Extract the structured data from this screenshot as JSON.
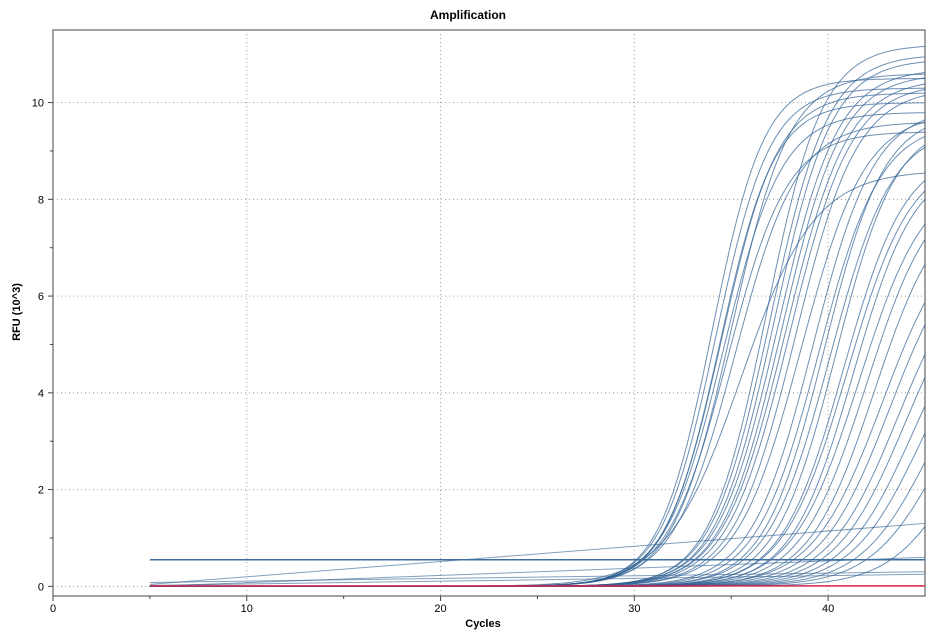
{
  "chart_data": {
    "type": "line",
    "title": "Amplification",
    "xlabel": "Cycles",
    "ylabel": "RFU (10^3)",
    "xlim": [
      0,
      45
    ],
    "ylim": [
      -0.2,
      11.5
    ],
    "x_ticks": [
      0,
      10,
      20,
      30,
      40
    ],
    "y_ticks": [
      0,
      2,
      4,
      6,
      8,
      10
    ],
    "grid": true,
    "legend": "none",
    "x_range": [
      5,
      45
    ],
    "threshold": 0.55,
    "curve_color": "#2d5f93",
    "baseline_color": "#d9234a",
    "threshold_color": "#3d6e9c",
    "curve_model": "sigmoid",
    "series": [
      {
        "ct": 34.0,
        "plateau": 10.5,
        "slope": 1.35
      },
      {
        "ct": 34.2,
        "plateau": 10.3,
        "slope": 1.4
      },
      {
        "ct": 34.4,
        "plateau": 10.0,
        "slope": 1.4
      },
      {
        "ct": 34.5,
        "plateau": 10.2,
        "slope": 1.45
      },
      {
        "ct": 34.6,
        "plateau": 9.8,
        "slope": 1.5
      },
      {
        "ct": 34.8,
        "plateau": 9.4,
        "slope": 1.55
      },
      {
        "ct": 35.0,
        "plateau": 10.6,
        "slope": 1.5
      },
      {
        "ct": 35.2,
        "plateau": 9.6,
        "slope": 1.6
      },
      {
        "ct": 35.5,
        "plateau": 8.6,
        "slope": 1.9
      },
      {
        "ct": 36.8,
        "plateau": 11.2,
        "slope": 1.45
      },
      {
        "ct": 37.0,
        "plateau": 11.0,
        "slope": 1.5
      },
      {
        "ct": 37.2,
        "plateau": 10.9,
        "slope": 1.5
      },
      {
        "ct": 37.4,
        "plateau": 10.7,
        "slope": 1.55
      },
      {
        "ct": 37.6,
        "plateau": 10.6,
        "slope": 1.55
      },
      {
        "ct": 37.8,
        "plateau": 10.5,
        "slope": 1.6
      },
      {
        "ct": 38.0,
        "plateau": 10.4,
        "slope": 1.6
      },
      {
        "ct": 38.3,
        "plateau": 10.3,
        "slope": 1.6
      },
      {
        "ct": 38.6,
        "plateau": 9.8,
        "slope": 1.65
      },
      {
        "ct": 39.2,
        "plateau": 9.9,
        "slope": 1.6
      },
      {
        "ct": 39.5,
        "plateau": 9.6,
        "slope": 1.6
      },
      {
        "ct": 39.8,
        "plateau": 9.8,
        "slope": 1.55
      },
      {
        "ct": 40.1,
        "plateau": 9.5,
        "slope": 1.6
      },
      {
        "ct": 40.4,
        "plateau": 9.6,
        "slope": 1.55
      },
      {
        "ct": 40.8,
        "plateau": 9.0,
        "slope": 1.6
      },
      {
        "ct": 41.0,
        "plateau": 8.9,
        "slope": 1.65
      },
      {
        "ct": 41.3,
        "plateau": 8.8,
        "slope": 1.6
      },
      {
        "ct": 41.6,
        "plateau": 8.5,
        "slope": 1.7
      },
      {
        "ct": 42.0,
        "plateau": 8.4,
        "slope": 1.7
      },
      {
        "ct": 42.4,
        "plateau": 8.1,
        "slope": 1.7
      },
      {
        "ct": 42.8,
        "plateau": 7.6,
        "slope": 1.8
      },
      {
        "ct": 43.2,
        "plateau": 7.4,
        "slope": 1.8
      },
      {
        "ct": 43.6,
        "plateau": 7.0,
        "slope": 1.8
      },
      {
        "ct": 44.0,
        "plateau": 6.8,
        "slope": 1.8
      },
      {
        "ct": 44.4,
        "plateau": 6.4,
        "slope": 1.8
      },
      {
        "ct": 44.8,
        "plateau": 6.0,
        "slope": 1.8
      },
      {
        "ct": 45.3,
        "plateau": 5.6,
        "slope": 1.8
      },
      {
        "ct": 45.8,
        "plateau": 5.2,
        "slope": 1.8
      },
      {
        "ct": 47.0,
        "plateau": 5.0,
        "slope": 1.8
      }
    ],
    "baseline_series": [
      {
        "x": [
          5,
          45
        ],
        "y": [
          0.08,
          0.3
        ]
      },
      {
        "x": [
          5,
          45
        ],
        "y": [
          0.04,
          1.3
        ]
      },
      {
        "x": [
          5,
          45
        ],
        "y": [
          0.0,
          0.6
        ]
      },
      {
        "x": [
          5,
          45
        ],
        "y": [
          0.02,
          0.25
        ]
      }
    ]
  }
}
